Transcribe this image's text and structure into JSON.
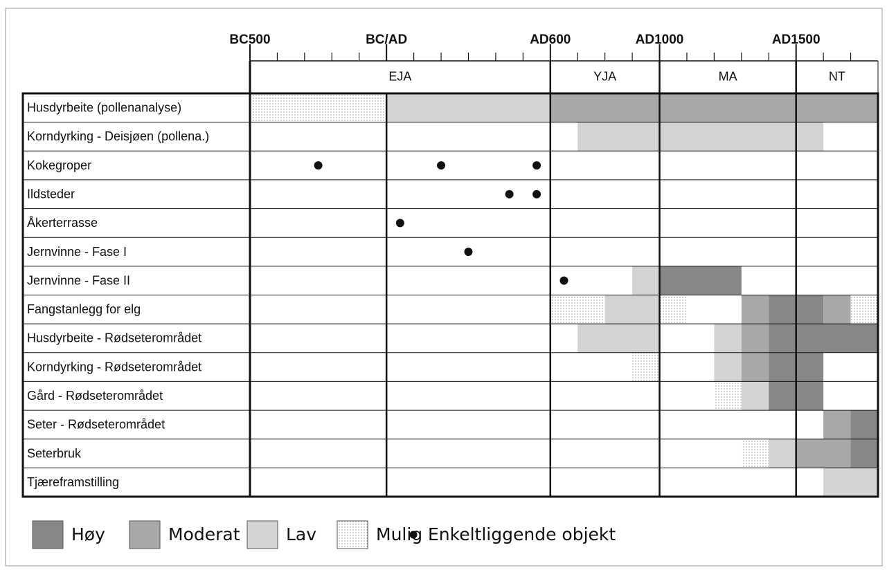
{
  "chart_data": {
    "type": "timeline",
    "xlim": [
      -500,
      1800
    ],
    "xticks": [
      {
        "value": -500,
        "label": "BC500"
      },
      {
        "value": 0,
        "label": "BC/AD"
      },
      {
        "value": 600,
        "label": "AD600"
      },
      {
        "value": 1000,
        "label": "AD1000"
      },
      {
        "value": 1500,
        "label": "AD1500"
      }
    ],
    "minor_xticks": [
      -400,
      -300,
      -200,
      -100,
      100,
      200,
      300,
      400,
      500,
      700,
      800,
      900,
      1100,
      1200,
      1300,
      1400,
      1600,
      1700
    ],
    "periods": [
      {
        "name": "EJA",
        "start": -500,
        "end": 600
      },
      {
        "name": "YJA",
        "start": 600,
        "end": 1000
      },
      {
        "name": "MA",
        "start": 1000,
        "end": 1500
      },
      {
        "name": "NT",
        "start": 1500,
        "end": 1800
      }
    ],
    "levels": [
      {
        "name": "Høy",
        "color": "#878787"
      },
      {
        "name": "Moderat",
        "color": "#a8a8a8"
      },
      {
        "name": "Lav",
        "color": "#d3d3d3"
      },
      {
        "name": "Mulig",
        "color": "#ffffff",
        "pattern": "dots"
      }
    ],
    "point_legend": "Enkeltliggende objekt",
    "rows": [
      {
        "label": "Husdyrbeite (pollenanalyse)",
        "segments": [
          {
            "start": -500,
            "end": 0,
            "level": "Mulig"
          },
          {
            "start": 0,
            "end": 600,
            "level": "Lav"
          },
          {
            "start": 600,
            "end": 1800,
            "level": "Moderat"
          }
        ],
        "points": []
      },
      {
        "label": "Korndyrking - Deisjøen (pollena.)",
        "segments": [
          {
            "start": 700,
            "end": 1600,
            "level": "Lav"
          }
        ],
        "points": []
      },
      {
        "label": "Kokegroper",
        "segments": [],
        "points": [
          -250,
          200,
          550
        ]
      },
      {
        "label": "Ildsteder",
        "segments": [],
        "points": [
          450,
          550
        ]
      },
      {
        "label": "Åkerterrasse",
        "segments": [],
        "points": [
          50
        ]
      },
      {
        "label": "Jernvinne - Fase I",
        "segments": [],
        "points": [
          300
        ]
      },
      {
        "label": "Jernvinne - Fase II",
        "segments": [
          {
            "start": 900,
            "end": 1000,
            "level": "Lav"
          },
          {
            "start": 1000,
            "end": 1300,
            "level": "Høy"
          }
        ],
        "points": [
          650
        ]
      },
      {
        "label": "Fangstanlegg for elg",
        "segments": [
          {
            "start": 600,
            "end": 800,
            "level": "Mulig"
          },
          {
            "start": 800,
            "end": 1000,
            "level": "Lav"
          },
          {
            "start": 1000,
            "end": 1100,
            "level": "Mulig"
          },
          {
            "start": 1300,
            "end": 1400,
            "level": "Moderat"
          },
          {
            "start": 1400,
            "end": 1600,
            "level": "Høy"
          },
          {
            "start": 1600,
            "end": 1700,
            "level": "Moderat"
          },
          {
            "start": 1700,
            "end": 1800,
            "level": "Mulig"
          }
        ],
        "points": []
      },
      {
        "label": "Husdyrbeite - Rødseterområdet",
        "segments": [
          {
            "start": 700,
            "end": 1000,
            "level": "Lav"
          },
          {
            "start": 1200,
            "end": 1300,
            "level": "Lav"
          },
          {
            "start": 1300,
            "end": 1400,
            "level": "Moderat"
          },
          {
            "start": 1400,
            "end": 1800,
            "level": "Høy"
          }
        ],
        "points": []
      },
      {
        "label": "Korndyrking - Rødseterområdet",
        "segments": [
          {
            "start": 900,
            "end": 1000,
            "level": "Mulig"
          },
          {
            "start": 1200,
            "end": 1300,
            "level": "Lav"
          },
          {
            "start": 1300,
            "end": 1400,
            "level": "Moderat"
          },
          {
            "start": 1400,
            "end": 1600,
            "level": "Høy"
          }
        ],
        "points": []
      },
      {
        "label": "Gård - Rødseterområdet",
        "segments": [
          {
            "start": 1200,
            "end": 1300,
            "level": "Mulig"
          },
          {
            "start": 1300,
            "end": 1400,
            "level": "Lav"
          },
          {
            "start": 1400,
            "end": 1600,
            "level": "Høy"
          }
        ],
        "points": []
      },
      {
        "label": "Seter - Rødseterområdet",
        "segments": [
          {
            "start": 1600,
            "end": 1700,
            "level": "Moderat"
          },
          {
            "start": 1700,
            "end": 1800,
            "level": "Høy"
          }
        ],
        "points": []
      },
      {
        "label": "Seterbruk",
        "segments": [
          {
            "start": 1300,
            "end": 1400,
            "level": "Mulig"
          },
          {
            "start": 1400,
            "end": 1500,
            "level": "Lav"
          },
          {
            "start": 1500,
            "end": 1700,
            "level": "Moderat"
          },
          {
            "start": 1700,
            "end": 1800,
            "level": "Høy"
          }
        ],
        "points": []
      },
      {
        "label": "Tjæreframstilling",
        "segments": [
          {
            "start": 1600,
            "end": 1800,
            "level": "Lav"
          }
        ],
        "points": []
      }
    ]
  }
}
